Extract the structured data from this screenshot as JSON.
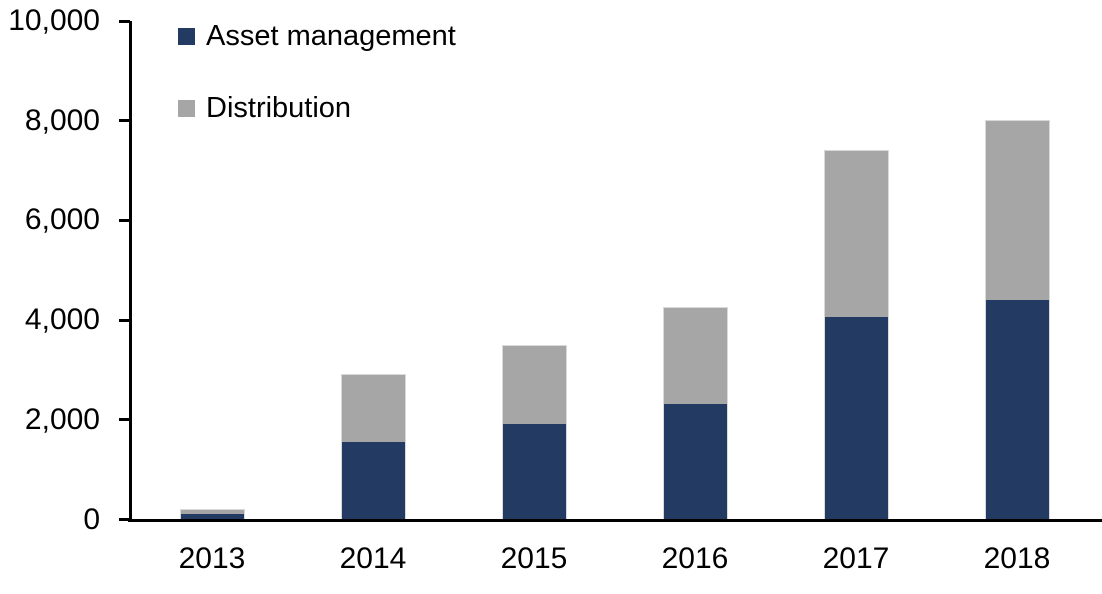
{
  "chart_data": {
    "type": "bar",
    "stacked": true,
    "title": "",
    "xlabel": "",
    "ylabel": "",
    "categories": [
      "2013",
      "2014",
      "2015",
      "2016",
      "2017",
      "2018"
    ],
    "series": [
      {
        "name": "Asset management",
        "color": "#233a63",
        "values": [
          100,
          1550,
          1900,
          2300,
          4050,
          4400
        ]
      },
      {
        "name": "Distribution",
        "color": "#a6a6a6",
        "values": [
          100,
          1350,
          1600,
          1950,
          3350,
          3600
        ]
      }
    ],
    "totals": [
      200,
      2900,
      3500,
      4250,
      7400,
      8000
    ],
    "ylim": [
      0,
      10000
    ],
    "yticks": [
      {
        "value": 0,
        "label": "0"
      },
      {
        "value": 2000,
        "label": "2,000"
      },
      {
        "value": 4000,
        "label": "4,000"
      },
      {
        "value": 6000,
        "label": "6,000"
      },
      {
        "value": 8000,
        "label": "8,000"
      },
      {
        "value": 10000,
        "label": "10,000"
      }
    ],
    "grid": false,
    "legend_position": "top-left-inside",
    "axis_color": "#000000",
    "bar_outline_color": "#d9d9d9",
    "background_color": "#ffffff"
  }
}
